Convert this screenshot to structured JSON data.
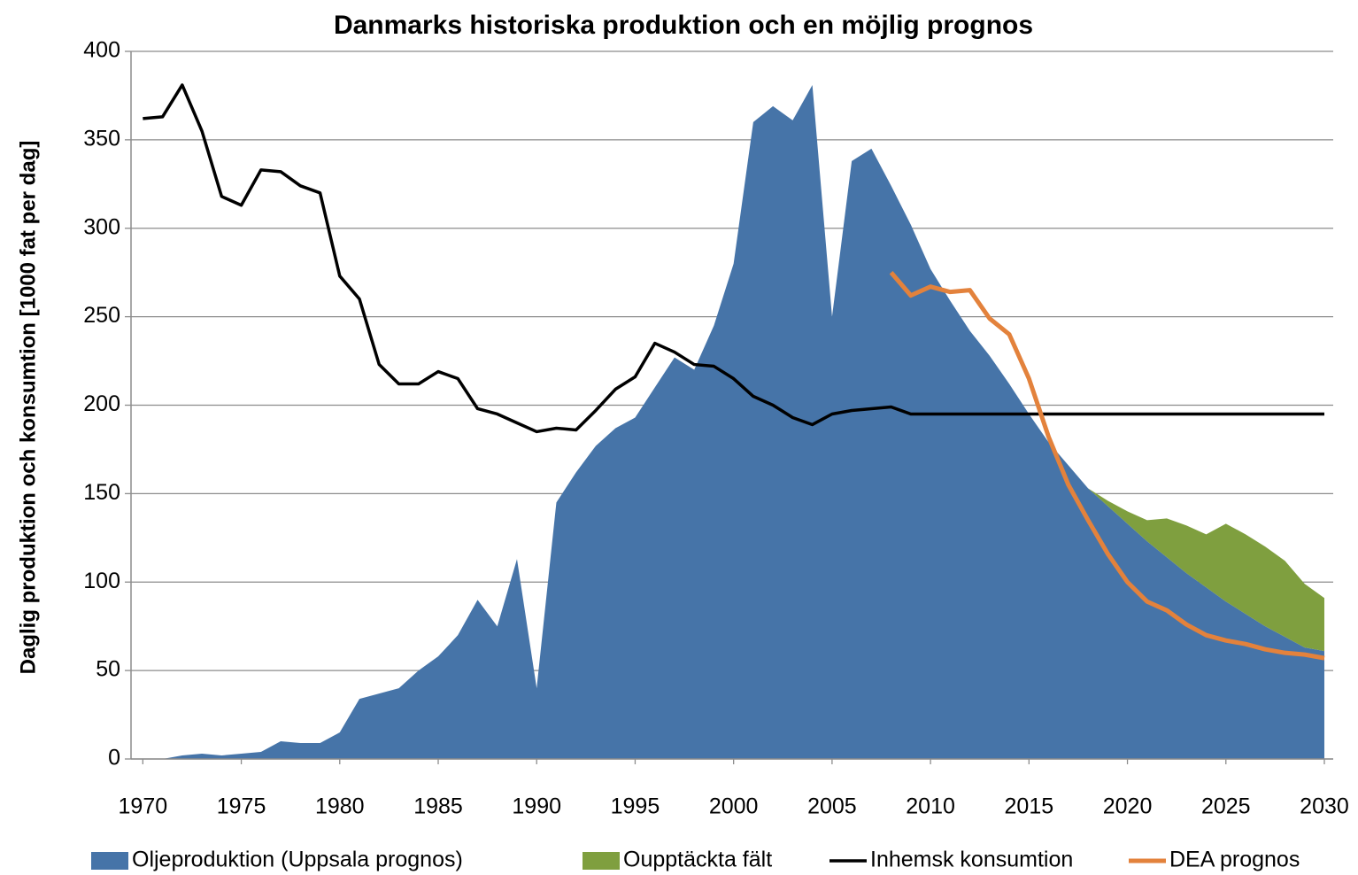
{
  "chart_data": {
    "type": "area",
    "title": "Danmarks historiska produktion och en möjlig prognos",
    "ylabel": "Daglig produktion och konsumtion  [1000 fat per dag]",
    "x": [
      1970,
      1971,
      1972,
      1973,
      1974,
      1975,
      1976,
      1977,
      1978,
      1979,
      1980,
      1981,
      1982,
      1983,
      1984,
      1985,
      1986,
      1987,
      1988,
      1989,
      1990,
      1991,
      1992,
      1993,
      1994,
      1995,
      1996,
      1997,
      1998,
      1999,
      2000,
      2001,
      2002,
      2003,
      2004,
      2005,
      2006,
      2007,
      2008,
      2009,
      2010,
      2011,
      2012,
      2013,
      2014,
      2015,
      2016,
      2017,
      2018,
      2019,
      2020,
      2021,
      2022,
      2023,
      2024,
      2025,
      2026,
      2027,
      2028,
      2029,
      2030
    ],
    "xlim": [
      1969.4,
      2030.45
    ],
    "xticks": [
      1970,
      1975,
      1980,
      1985,
      1990,
      1995,
      2000,
      2005,
      2010,
      2015,
      2020,
      2025,
      2030
    ],
    "ylim": [
      0,
      400
    ],
    "yticks": [
      0,
      50,
      100,
      150,
      200,
      250,
      300,
      350,
      400
    ],
    "grid": true,
    "series": [
      {
        "name": "Oljeproduktion (Uppsala prognos)",
        "type": "area",
        "color": "#4674a8",
        "values": [
          0,
          0,
          2,
          3,
          2,
          3,
          4,
          10,
          9,
          9,
          15,
          34,
          37,
          40,
          50,
          58,
          70,
          90,
          75,
          113,
          40,
          145,
          162,
          177,
          187,
          193,
          210,
          227,
          220,
          245,
          280,
          360,
          369,
          361,
          381,
          250,
          338,
          345,
          324,
          302,
          277,
          259,
          242,
          228,
          212,
          195,
          179,
          166,
          153,
          143,
          133,
          123,
          114,
          105,
          97,
          89,
          82,
          75,
          69,
          63,
          61
        ]
      },
      {
        "name": "Oupptäckta fält",
        "type": "area",
        "stack": true,
        "color": "#7f9f3f",
        "values": [
          null,
          null,
          null,
          null,
          null,
          null,
          null,
          null,
          null,
          null,
          null,
          null,
          null,
          null,
          null,
          null,
          null,
          null,
          null,
          null,
          null,
          null,
          null,
          null,
          null,
          null,
          null,
          null,
          null,
          null,
          null,
          null,
          null,
          null,
          null,
          null,
          null,
          null,
          null,
          null,
          null,
          null,
          null,
          null,
          null,
          null,
          null,
          null,
          0,
          3,
          7,
          12,
          22,
          27,
          30,
          44,
          45,
          45,
          43,
          36,
          30
        ]
      },
      {
        "name": "Inhemsk konsumtion",
        "type": "line",
        "color": "#000000",
        "values": [
          362,
          363,
          381,
          355,
          318,
          313,
          333,
          332,
          324,
          320,
          273,
          260,
          223,
          212,
          212,
          219,
          215,
          198,
          195,
          190,
          185,
          187,
          186,
          197,
          209,
          216,
          235,
          230,
          223,
          222,
          215,
          205,
          200,
          193,
          189,
          195,
          197,
          198,
          199,
          195,
          195,
          195,
          195,
          195,
          195,
          195,
          195,
          195,
          195,
          195,
          195,
          195,
          195,
          195,
          195,
          195,
          195,
          195,
          195,
          195,
          195
        ]
      },
      {
        "name": "DEA prognos",
        "type": "line",
        "color": "#e3823c",
        "values": [
          null,
          null,
          null,
          null,
          null,
          null,
          null,
          null,
          null,
          null,
          null,
          null,
          null,
          null,
          null,
          null,
          null,
          null,
          null,
          null,
          null,
          null,
          null,
          null,
          null,
          null,
          null,
          null,
          null,
          null,
          null,
          null,
          null,
          null,
          null,
          null,
          null,
          null,
          275,
          262,
          267,
          264,
          265,
          249,
          240,
          215,
          182,
          155,
          135,
          116,
          100,
          89,
          84,
          76,
          70,
          67,
          65,
          62,
          60,
          59,
          57
        ]
      }
    ]
  }
}
